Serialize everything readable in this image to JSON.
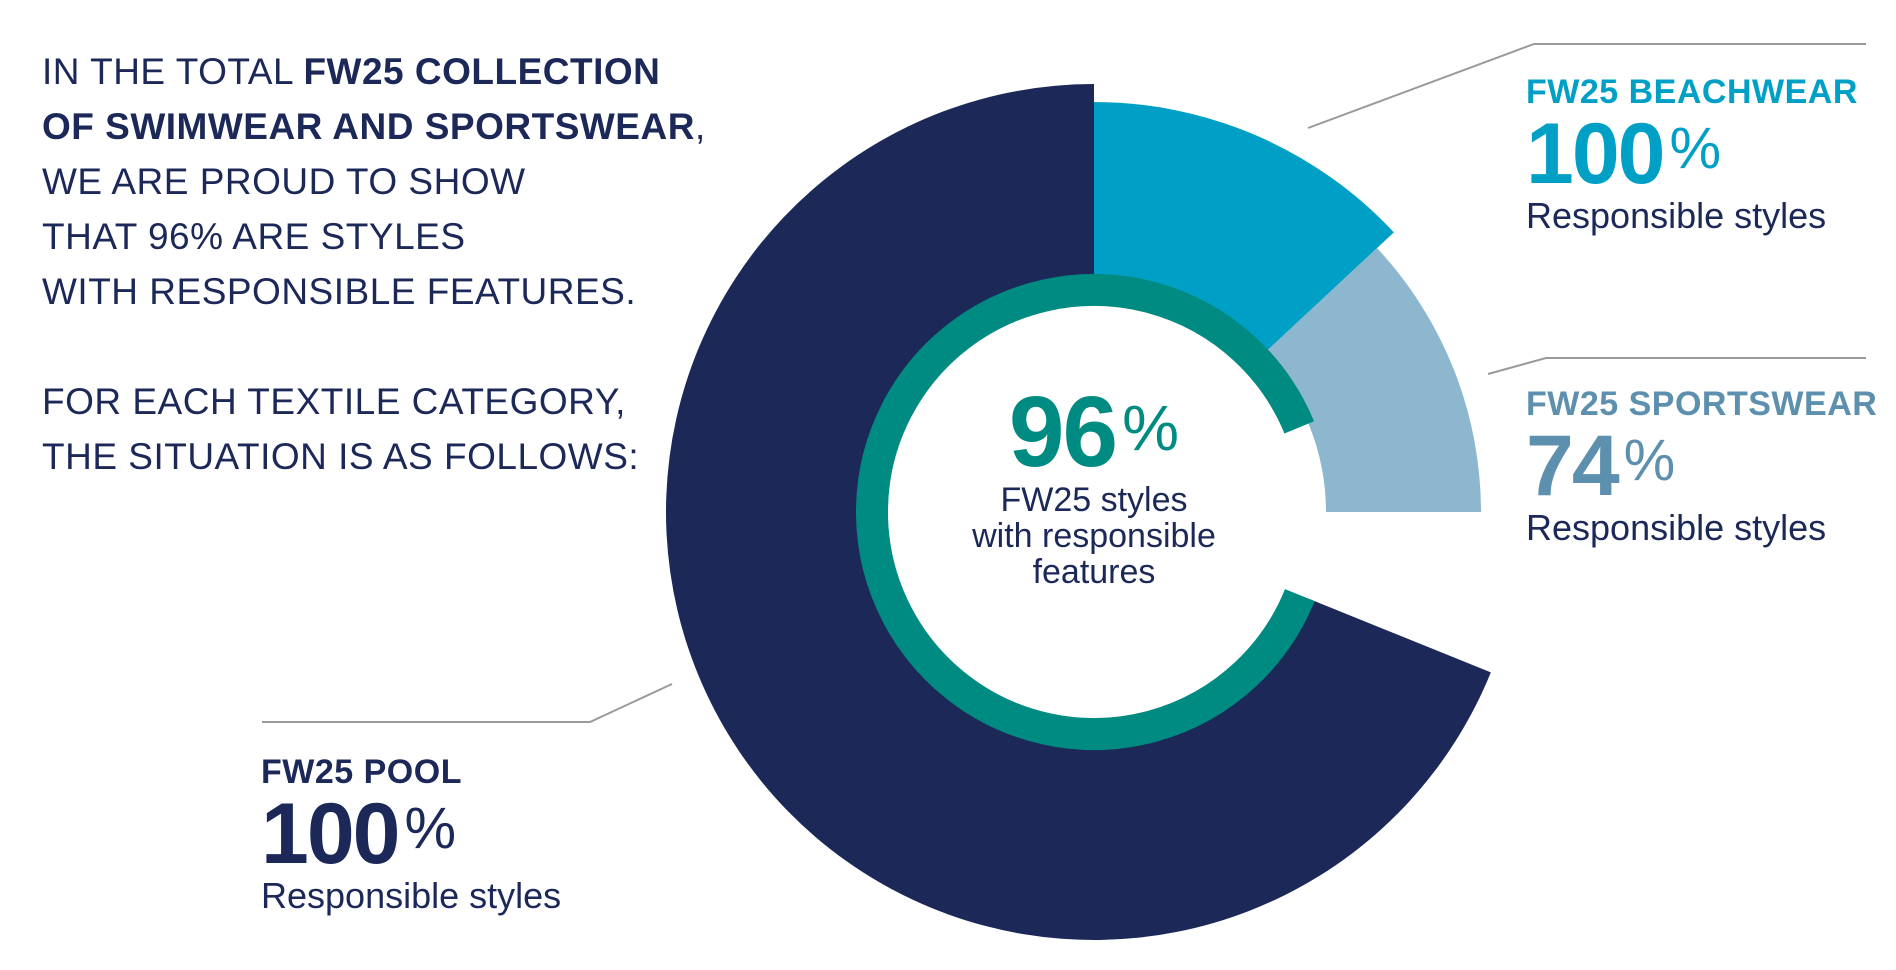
{
  "intro": {
    "p1_pre": "IN THE TOTAL ",
    "p1_bold_1": "FW25 COLLECTION",
    "p1_bold_2": "OF SWIMWEAR AND SPORTSWEAR",
    "p1_comma": ",",
    "p1_line_3": "WE ARE PROUD TO SHOW",
    "p1_line_4": "THAT 96% ARE STYLES",
    "p1_line_5": "WITH RESPONSIBLE FEATURES.",
    "p2_line_1": "FOR EACH TEXTILE CATEGORY,",
    "p2_line_2": "THE SITUATION IS AS FOLLOWS:"
  },
  "colors": {
    "navy": "#1b2858",
    "beachwear": "#00a0c6",
    "sportswear": "#8db6cf",
    "sportswear_text": "#5d8fae",
    "total_ring": "#008b82",
    "leader": "#9a9a9a"
  },
  "chart_data": {
    "type": "pie",
    "style": "donut",
    "center": {
      "value": "96",
      "unit": "%",
      "line_1": "FW25 styles",
      "line_2": "with responsible",
      "line_3": "features"
    },
    "series": [
      {
        "name": "FW25 POOL",
        "value": 100,
        "unit": "%",
        "caption": "Responsible styles"
      },
      {
        "name": "FW25 BEACHWEAR",
        "value": 100,
        "unit": "%",
        "caption": "Responsible styles"
      },
      {
        "name": "FW25 SPORTSWEAR",
        "value": 74,
        "unit": "%",
        "caption": "Responsible styles"
      }
    ],
    "total": {
      "value": 96,
      "unit": "%"
    }
  }
}
